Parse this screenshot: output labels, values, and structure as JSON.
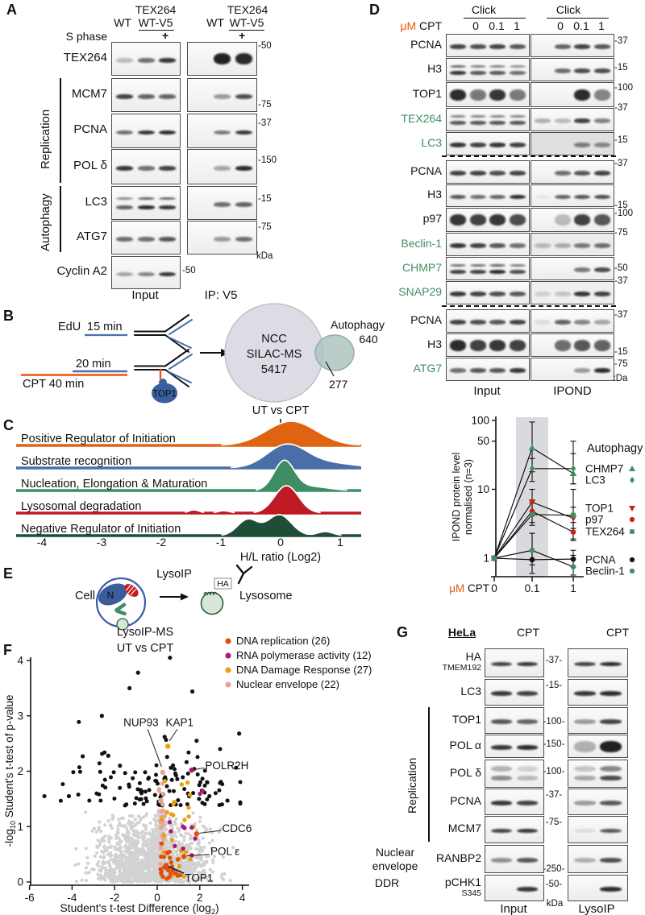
{
  "figure": {
    "a": "A",
    "b": "B",
    "c": "C",
    "d": "D",
    "e": "E",
    "f": "F",
    "g": "G"
  },
  "colors": {
    "orange": "#e8590c",
    "blue": "#4a6fa8",
    "green": "#3e8e63",
    "dark_green": "#1e4d38",
    "red": "#bf1a22",
    "magenta": "#b01878",
    "amber": "#eaa010",
    "salmon": "#eba493",
    "replication_orange": "#e0500a"
  },
  "panelA": {
    "groups": [
      {
        "top": "TEX264",
        "wt": "WT",
        "wtv5": "WT-V5"
      },
      {
        "top": "TEX264",
        "wt": "WT",
        "wtv5": "WT-V5"
      }
    ],
    "s_phase": "S phase",
    "plus": "+",
    "brackets": {
      "replication": "Replication",
      "autophagy": "Autophagy"
    },
    "rows": [
      {
        "label": "TEX264",
        "kda": "-50",
        "input": [
          0.25,
          0.6,
          0.85
        ],
        "ip": [
          0,
          0.95,
          0.9
        ],
        "style_ip": "blob"
      },
      {
        "label": "MCM7",
        "kda": "-75",
        "input": [
          0.8,
          0.65,
          0.65
        ],
        "ip": [
          0,
          0.4,
          0.75
        ]
      },
      {
        "label": "PCNA",
        "kda": "-37",
        "input": [
          0.6,
          0.85,
          0.9
        ],
        "ip": [
          0,
          0.55,
          0.85
        ]
      },
      {
        "label": "POL δ",
        "kda": "-150",
        "input": [
          0.85,
          0.6,
          0.8
        ],
        "ip": [
          0,
          0.35,
          0.9
        ]
      },
      {
        "label": "LC3",
        "kda": "-15",
        "input": [
          0.65,
          0.9,
          0.85
        ],
        "ip": [
          0,
          0.6,
          0.65
        ],
        "style_input": "doublet"
      },
      {
        "label": "ATG7",
        "kda": "-75",
        "input": [
          0.6,
          0.6,
          0.7
        ],
        "ip": [
          0,
          0.4,
          0.6
        ]
      }
    ],
    "cyclin": {
      "label": "Cyclin A2",
      "kda": "-50",
      "input": [
        0.35,
        0.5,
        0.85
      ]
    },
    "footer": {
      "input": "Input",
      "ip": "IP: V5",
      "kda": "kDa"
    }
  },
  "panelB": {
    "edu": "EdU",
    "t15": "15 min",
    "t20": "20 min",
    "cpt40": "CPT 40 min",
    "top1": "TOP1",
    "venn_line1": "NCC",
    "venn_line2": "SILAC-MS",
    "venn_line3": "5417",
    "autophagy_label": "Autophagy",
    "autophagy_count": "640",
    "overlap_count": "277"
  },
  "panelD": {
    "um": "μM",
    "cpt": "CPT",
    "click": "Click",
    "doses": [
      "0",
      "0.1",
      "1"
    ],
    "footer": {
      "input": "Input",
      "ipond": "IPOND",
      "kda": "kDa"
    },
    "rows": [
      {
        "label": "PCNA",
        "kda": "-37",
        "input": [
          0.8,
          0.75,
          0.8,
          0.7
        ],
        "ipond": [
          0,
          0.65,
          0.8,
          0.7
        ]
      },
      {
        "label": "H3",
        "kda": "-15",
        "input": [
          0.85,
          0.7,
          0.7,
          0.6
        ],
        "ipond": [
          0,
          0.6,
          0.75,
          0.75
        ],
        "style_input": "doublet"
      },
      {
        "label": "TOP1",
        "kda": "-100",
        "input": [
          0.9,
          0.55,
          0.85,
          0.55
        ],
        "ipond": [
          0,
          0,
          0.9,
          0.5
        ],
        "style": "blob"
      },
      {
        "label": "TEX264",
        "green": true,
        "kda": "-37",
        "input": [
          0.7,
          0.7,
          0.7,
          0.7
        ],
        "ipond": [
          0.3,
          0.25,
          0.8,
          0.5
        ],
        "style_input": "doublet"
      },
      {
        "label": "LC3",
        "green": true,
        "kda": "-15",
        "input": [
          0.85,
          0.8,
          0.85,
          0.8
        ],
        "ipond": [
          0,
          0,
          0.5,
          0.45
        ],
        "ipond_bg": "#e0e0e0"
      },
      {
        "label": "PCNA",
        "kda": "-37",
        "input": [
          0.8,
          0.8,
          0.75,
          0.8
        ],
        "ipond": [
          0,
          0.6,
          0.7,
          0.8
        ]
      },
      {
        "label": "H3",
        "kda": "-15",
        "input": [
          0.7,
          0.6,
          0.65,
          0.9
        ],
        "ipond": [
          0.05,
          0.65,
          0.7,
          0.75
        ]
      },
      {
        "label": "p97",
        "kda": "-100",
        "input": [
          0.85,
          0.8,
          0.85,
          0.75
        ],
        "ipond": [
          0,
          0.25,
          0.8,
          0.7
        ],
        "style": "blob"
      },
      {
        "label": "Beclin-1",
        "green": true,
        "kda": "-75",
        "input": [
          0.85,
          0.8,
          0.7,
          0.6
        ],
        "ipond": [
          0.25,
          0.3,
          0.55,
          0.6
        ],
        "ipond_bg": "#ececec"
      },
      {
        "label": "CHMP7",
        "green": true,
        "kda": "-50",
        "input": [
          0.8,
          0.8,
          0.9,
          0.75
        ],
        "ipond": [
          0,
          0,
          0.55,
          0.75
        ],
        "style_input": "doublet"
      },
      {
        "label": "SNAP29",
        "green": true,
        "kda": "-37",
        "input": [
          0.85,
          0.8,
          0.75,
          0.7
        ],
        "ipond": [
          0.15,
          0.2,
          0.85,
          0.8
        ],
        "ipond_bg": "#efefef"
      },
      {
        "label": "PCNA",
        "kda": "-37",
        "input": [
          0.8,
          0.75,
          0.7,
          0.8
        ],
        "ipond": [
          0.1,
          0.65,
          0.5,
          0.35
        ]
      },
      {
        "label": "H3",
        "kda": "-15",
        "input": [
          0.9,
          0.8,
          0.85,
          0.8
        ],
        "ipond": [
          0,
          0.6,
          0.7,
          0.65
        ],
        "style": "blob"
      },
      {
        "label": "ATG7",
        "green": true,
        "kda": "-75",
        "input": [
          0.6,
          0.7,
          0.7,
          0.85
        ],
        "ipond": [
          0,
          0,
          0.4,
          0.9
        ]
      }
    ]
  },
  "panelE": {
    "cell": "Cell",
    "nucleus": "N",
    "lysoip": "LysoIP",
    "ha": "HA",
    "lysosome": "Lysosome"
  },
  "panelG": {
    "hela": "HeLa",
    "cpt": "CPT",
    "brackets": {
      "replication": "Replication",
      "nuclear": "Nuclear envelope",
      "ddr": "DDR"
    },
    "footer": {
      "input": "Input",
      "lysoip": "LysoIP",
      "kda": "kDa"
    },
    "rows": [
      {
        "label": "HA",
        "sublabel": "TMEM192",
        "kda": "-37-",
        "input": [
          0.8,
          0.85
        ],
        "lysoip": [
          0.8,
          0.9
        ]
      },
      {
        "label": "LC3",
        "kda": "-15-",
        "input": [
          0.85,
          0.8
        ],
        "lysoip": [
          0.85,
          0.9
        ]
      },
      {
        "label": "TOP1",
        "kda": "-100-",
        "input": [
          0.7,
          0.65
        ],
        "lysoip": [
          0.4,
          0.8
        ]
      },
      {
        "label": "POL α",
        "kda": "-150-",
        "input": [
          0.85,
          0.9
        ],
        "lysoip": [
          0.3,
          0.95
        ],
        "style_lysoip": "blob"
      },
      {
        "label": "POL δ",
        "kda": "-100-",
        "input": [
          0.55,
          0.3
        ],
        "lysoip": [
          0.4,
          0.9
        ],
        "style": "smear"
      },
      {
        "label": "PCNA",
        "kda": "-37-",
        "input": [
          0.85,
          0.8
        ],
        "lysoip": [
          0.4,
          0.7
        ]
      },
      {
        "label": "MCM7",
        "kda": "-75-",
        "input": [
          0.8,
          0.85
        ],
        "lysoip": [
          0.1,
          0.7
        ]
      },
      {
        "label": "RANBP2",
        "kda": "-250-",
        "input": [
          0.45,
          0.7
        ],
        "lysoip": [
          0.3,
          0.75
        ]
      },
      {
        "label": "pCHK1",
        "sublabel": "S345",
        "kda": "-50-",
        "input": [
          0,
          0.85
        ],
        "lysoip": [
          0,
          0.9
        ]
      }
    ]
  },
  "chart_data": [
    {
      "id": "ridge",
      "type": "area",
      "panel": "C",
      "title": "UT vs CPT",
      "xlabel": "H/L ratio (Log2)",
      "xticks": [
        -4,
        -3,
        -2,
        -1,
        0,
        1
      ],
      "xlim": [
        -4.45,
        1.35
      ],
      "legend_position": "left-labels",
      "grid": false,
      "series": [
        {
          "label": "Positive Regulator of Initiation",
          "color": "#e06312",
          "components": [
            {
              "mu": 0.18,
              "sigma": 0.42,
              "h": 30
            }
          ]
        },
        {
          "label": "Substrate recognition",
          "color": "#4a6fa8",
          "components": [
            {
              "mu": 0.1,
              "sigma": 0.33,
              "h": 28
            },
            {
              "mu": 0.8,
              "sigma": 0.45,
              "h": 6
            }
          ]
        },
        {
          "label": "Nucleation, Elongation & Maturation",
          "color": "#3e8e63",
          "components": [
            {
              "mu": 0.06,
              "sigma": 0.17,
              "h": 36
            },
            {
              "mu": 0.5,
              "sigma": 0.3,
              "h": 5
            }
          ]
        },
        {
          "label": "Lysosomal degradation",
          "color": "#bf1a22",
          "components": [
            {
              "mu": 0.1,
              "sigma": 0.2,
              "h": 34
            },
            {
              "mu": -1.45,
              "sigma": 0.09,
              "h": 4
            },
            {
              "mu": -0.95,
              "sigma": 0.1,
              "h": 3
            }
          ]
        },
        {
          "label": "Negative Regulator of Initiation",
          "color": "#1e4d38",
          "components": [
            {
              "mu": -0.55,
              "sigma": 0.17,
              "h": 20
            },
            {
              "mu": -0.02,
              "sigma": 0.2,
              "h": 26
            },
            {
              "mu": 0.75,
              "sigma": 0.13,
              "h": 5
            }
          ]
        }
      ]
    },
    {
      "id": "ipond",
      "type": "line",
      "ylabel_line1": "IPOND protein level",
      "ylabel_line2": "normalised (n=3)",
      "xlabel_um": "μM",
      "xlabel_cpt": "CPT",
      "categories": [
        "0",
        "0.1",
        "1"
      ],
      "yticks": [
        1,
        10,
        50,
        100
      ],
      "yscale": "log",
      "ylim": [
        0.5,
        100
      ],
      "shaded_band_category": "0.1",
      "legend_title": "Autophagy",
      "series": [
        {
          "name": "CHMP7",
          "marker": "triangle-up",
          "color": "#3e8e63",
          "values": [
            1,
            40,
            17
          ],
          "err_hi": [
            0,
            95,
            50
          ],
          "err_lo": [
            0,
            18,
            12
          ]
        },
        {
          "name": "LC3",
          "marker": "diamond",
          "color": "#3e8e63",
          "values": [
            1,
            20,
            20
          ],
          "err_hi": [
            0,
            28,
            33
          ],
          "err_lo": [
            0,
            13,
            12
          ]
        },
        {
          "name": "TOP1",
          "marker": "triangle-down",
          "color": "#cc2214",
          "values": [
            1,
            6.5,
            3.8
          ],
          "err_hi": [
            0,
            10,
            5.5
          ],
          "err_lo": [
            0,
            4.4,
            2.7
          ]
        },
        {
          "name": "p97",
          "marker": "circle",
          "color": "#cc2214",
          "values": [
            1,
            4.8,
            2.4
          ],
          "err_hi": [
            0,
            7,
            3.3
          ],
          "err_lo": [
            0,
            3.3,
            1.8
          ]
        },
        {
          "name": "TEX264",
          "marker": "square",
          "color": "#3e8e63",
          "values": [
            1,
            4.3,
            4.2
          ],
          "err_hi": [
            0,
            6.3,
            10
          ],
          "err_lo": [
            0,
            3,
            1.9
          ]
        },
        {
          "name": "PCNA",
          "marker": "circle",
          "color": "#111111",
          "values": [
            1,
            0.95,
            0.97
          ],
          "err_hi": [
            0,
            2.3,
            1.3
          ],
          "err_lo": [
            0,
            0.6,
            0.75
          ]
        },
        {
          "name": "Beclin-1",
          "marker": "circle",
          "color": "#3e8e63",
          "values": [
            1,
            1.3,
            0.75
          ],
          "err_hi": [
            0,
            2.3,
            1.1
          ],
          "err_lo": [
            0,
            0.8,
            0.55
          ]
        }
      ]
    },
    {
      "id": "volcano",
      "type": "scatter",
      "title_line1": "LysoIP-MS",
      "title_line2": "UT vs CPT",
      "xlabel_parts": {
        "pre": "Student's t-test Difference (log",
        "sub": "2",
        "post": ")"
      },
      "ylabel_parts": {
        "pre": "-log",
        "sub": "10",
        "post": " Student's t-test of p-value"
      },
      "xticks": [
        -6,
        -4,
        -2,
        0,
        2,
        4
      ],
      "yticks": [
        0,
        1,
        2,
        3,
        4
      ],
      "xlim": [
        -6,
        4.2
      ],
      "ylim": [
        0,
        4.15
      ],
      "significance_threshold": 1.32,
      "legend": [
        {
          "label": "DNA replication (26)",
          "color": "#e0500a",
          "count": 26
        },
        {
          "label": "RNA polymerase activity (12)",
          "color": "#b01878",
          "count": 12
        },
        {
          "label": "DNA Damage Response (27)",
          "color": "#eaa010",
          "count": 27
        },
        {
          "label": "Nuclear envelope (22)",
          "color": "#eba493",
          "count": 22
        }
      ],
      "labeled": [
        {
          "name": "NUP93",
          "x": 0.26,
          "y": 1.98,
          "color": "#eba493",
          "lx": -0.76,
          "ly": 2.88,
          "anchor": "middle",
          "line": [
            -0.45,
            2.76,
            0.2,
            2.08
          ]
        },
        {
          "name": "KAP1",
          "x": 0.5,
          "y": 2.45,
          "color": "#eaa010",
          "lx": 1.05,
          "ly": 2.88,
          "anchor": "middle",
          "line": [
            0.95,
            2.76,
            0.58,
            2.55
          ]
        },
        {
          "name": "POLR2H",
          "x": 1.62,
          "y": 2.02,
          "color": "#b01878",
          "lx": 2.25,
          "ly": 2.1,
          "anchor": "start",
          "line": [
            2.2,
            2.06,
            1.75,
            2.03
          ]
        },
        {
          "name": "CDC6",
          "x": 1.85,
          "y": 0.87,
          "color": "#e0500a",
          "lx": 3.05,
          "ly": 0.97,
          "anchor": "start",
          "line": [
            3.0,
            0.93,
            1.97,
            0.88
          ]
        },
        {
          "name": "POL ε",
          "x": 1.25,
          "y": 0.46,
          "color": "#e0500a",
          "lx": 2.5,
          "ly": 0.55,
          "anchor": "start",
          "line": [
            2.45,
            0.5,
            1.38,
            0.47
          ]
        },
        {
          "name": "TOP1",
          "x": 0.42,
          "y": 0.3,
          "color": "#e0500a",
          "lx": 1.3,
          "ly": 0.07,
          "anchor": "start",
          "line": [
            1.25,
            0.16,
            0.5,
            0.28
          ],
          "thick": true
        }
      ],
      "black_highlights": [
        [
          0.6,
          4.05
        ],
        [
          -0.9,
          3.78
        ],
        [
          -1.3,
          3.5
        ],
        [
          1.65,
          3.44
        ],
        [
          -2.6,
          3.0
        ],
        [
          3.85,
          2.68
        ],
        [
          -5.3,
          1.55
        ],
        [
          -4.15,
          1.55
        ],
        [
          -3.5,
          2.27
        ],
        [
          2.45,
          1.55
        ],
        [
          3.3,
          1.47
        ],
        [
          1.85,
          2.55
        ],
        [
          -2.3,
          2.28
        ],
        [
          -1.75,
          2.1
        ],
        [
          0.35,
          2.62
        ]
      ]
    }
  ]
}
